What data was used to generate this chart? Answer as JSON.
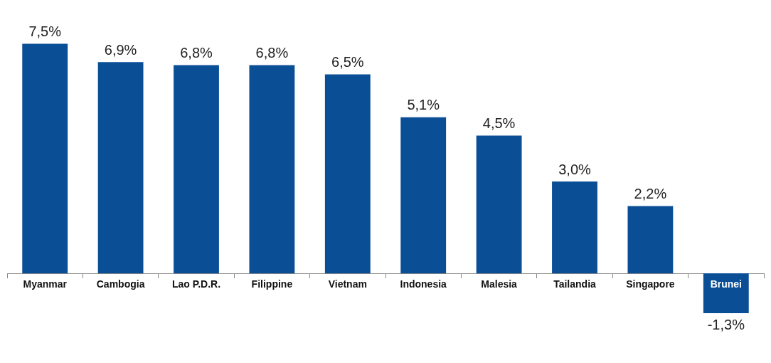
{
  "chart_data": {
    "type": "bar",
    "categories": [
      "Myanmar",
      "Cambogia",
      "Lao P.D.R.",
      "Filippine",
      "Vietnam",
      "Indonesia",
      "Malesia",
      "Tailandia",
      "Singapore",
      "Brunei"
    ],
    "values": [
      7.5,
      6.9,
      6.8,
      6.8,
      6.5,
      5.1,
      4.5,
      3.0,
      2.2,
      -1.3
    ],
    "value_labels": [
      "7,5%",
      "6,9%",
      "6,8%",
      "6,8%",
      "6,5%",
      "5,1%",
      "4,5%",
      "3,0%",
      "2,2%",
      "-1,3%"
    ],
    "color": "#0a4f96",
    "grid": false,
    "legend": false,
    "tick_labels": "x"
  }
}
